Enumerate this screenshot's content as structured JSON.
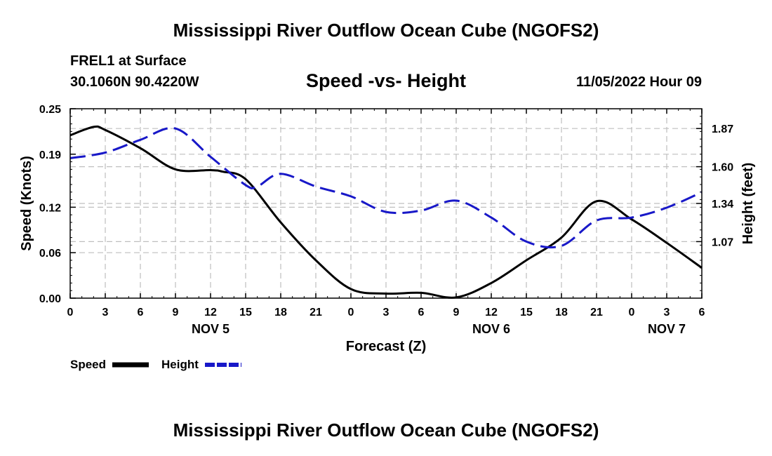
{
  "header": {
    "title": "Mississippi River Outflow Ocean Cube (NGOFS2)",
    "station": "FREL1 at Surface",
    "coords": "30.1060N  90.4220W",
    "subtitle": "Speed -vs- Height",
    "datetime": "11/05/2022 Hour 09"
  },
  "footer": {
    "title": "Mississippi River Outflow Ocean Cube (NGOFS2)"
  },
  "colors": {
    "speed": "#000000",
    "height": "#1818c8",
    "grid": "#bfbfbf"
  },
  "chart_data": {
    "type": "line",
    "title": "Speed -vs- Height",
    "xlabel": "Forecast (Z)",
    "ylabel": "Speed (Knots)",
    "y2label": "Height (feet)",
    "x_range": [
      0,
      54
    ],
    "xticks": [
      0,
      3,
      6,
      9,
      12,
      15,
      18,
      21,
      24,
      27,
      30,
      33,
      36,
      39,
      42,
      45,
      48,
      51,
      54
    ],
    "xtick_labels": [
      "0",
      "3",
      "6",
      "9",
      "12",
      "15",
      "18",
      "21",
      "0",
      "3",
      "6",
      "9",
      "12",
      "15",
      "18",
      "21",
      "0",
      "3",
      "6"
    ],
    "date_labels": [
      {
        "x": 12,
        "label": "NOV 5"
      },
      {
        "x": 36,
        "label": "NOV 6"
      },
      {
        "x": 51,
        "label": "NOV 7"
      }
    ],
    "ylim": [
      0,
      0.25
    ],
    "yticks": [
      0.0,
      0.06,
      0.12,
      0.19,
      0.25
    ],
    "ytick_labels": [
      "0.00",
      "0.06",
      "0.12",
      "0.19",
      "0.25"
    ],
    "y2lim": [
      0.67,
      2.01
    ],
    "y2ticks": [
      1.07,
      1.34,
      1.6,
      1.87
    ],
    "y2tick_labels": [
      "1.07",
      "1.34",
      "1.60",
      "1.87"
    ],
    "grid": true,
    "legend": [
      {
        "label": "Speed",
        "style": "solid"
      },
      {
        "label": "Height",
        "style": "dashed"
      }
    ],
    "series": [
      {
        "name": "Speed",
        "axis": "left",
        "x": [
          0,
          2,
          3,
          6,
          9,
          12,
          13,
          15,
          18,
          21,
          24,
          27,
          30,
          33,
          36,
          39,
          42,
          45,
          48,
          51,
          54
        ],
        "values": [
          0.215,
          0.226,
          0.222,
          0.198,
          0.17,
          0.169,
          0.167,
          0.157,
          0.1,
          0.05,
          0.012,
          0.006,
          0.007,
          0.001,
          0.02,
          0.05,
          0.08,
          0.128,
          0.104,
          0.073,
          0.04
        ]
      },
      {
        "name": "Height",
        "axis": "right",
        "x": [
          0,
          3,
          6,
          9,
          12,
          15,
          16,
          18,
          21,
          24,
          27,
          30,
          33,
          36,
          39,
          42,
          45,
          48,
          51,
          54
        ],
        "values": [
          1.66,
          1.7,
          1.79,
          1.87,
          1.67,
          1.47,
          1.46,
          1.55,
          1.46,
          1.39,
          1.28,
          1.29,
          1.36,
          1.24,
          1.07,
          1.04,
          1.22,
          1.24,
          1.31,
          1.42
        ]
      }
    ]
  }
}
